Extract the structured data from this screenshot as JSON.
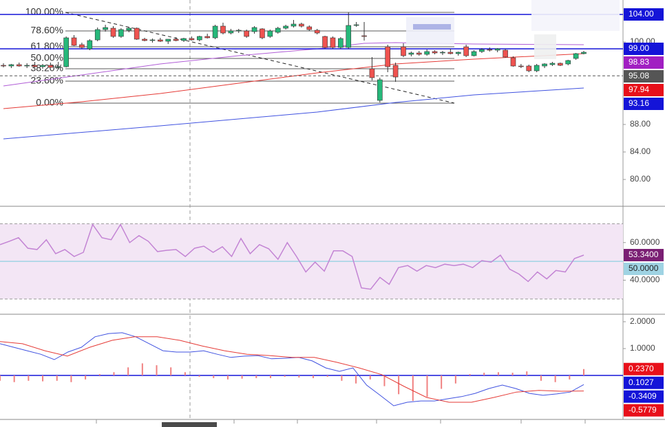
{
  "chart_data": [
    {
      "type": "candlestick",
      "open": [
        96.6,
        96.5,
        96.7,
        96.5,
        96.6,
        96.4,
        96.6,
        96.3,
        96.4,
        100.6,
        99.6,
        99.0,
        100.3,
        101.8,
        102.0,
        100.8,
        101.7,
        102.0,
        100.4,
        100.2,
        100.3,
        100.1,
        100.4,
        100.2,
        100.5,
        100.3,
        100.8,
        100.6,
        102.3,
        101.3,
        101.6,
        101.6,
        101.5,
        101.9,
        100.8,
        101.4,
        102.0,
        102.3,
        102.6,
        102.2,
        101.7,
        100.8,
        100.6,
        99.2,
        99.2,
        102.5,
        100.9,
        96.1,
        91.5,
        99.3,
        96.6,
        99.3,
        98.2,
        98.4,
        98.2,
        98.6,
        98.4,
        98.5,
        98.3,
        99.3,
        98.0,
        98.6,
        98.9,
        98.8,
        98.8,
        97.7,
        96.5,
        96.5,
        95.8,
        96.5,
        96.7,
        96.9,
        96.8,
        97.6,
        98.3
      ],
      "high": [
        96.9,
        96.8,
        97.0,
        96.9,
        97.1,
        96.8,
        97.0,
        97.1,
        100.8,
        101.0,
        99.9,
        100.4,
        102.1,
        102.5,
        102.3,
        102.0,
        102.2,
        102.1,
        100.6,
        100.5,
        100.6,
        100.4,
        100.7,
        100.6,
        100.8,
        100.9,
        101.2,
        102.5,
        102.8,
        101.9,
        101.9,
        101.8,
        102.3,
        102.0,
        101.8,
        102.2,
        102.5,
        103.2,
        102.8,
        102.4,
        101.9,
        100.9,
        100.8,
        100.7,
        104.3,
        102.9,
        102.9,
        97.8,
        94.8,
        99.6,
        97.0,
        99.8,
        98.6,
        98.7,
        98.9,
        98.8,
        98.7,
        99.0,
        98.6,
        99.6,
        98.8,
        99.1,
        99.2,
        99.1,
        99.0,
        97.9,
        96.8,
        96.7,
        96.8,
        96.9,
        97.1,
        97.0,
        97.4,
        98.4,
        98.7
      ],
      "low": [
        96.3,
        96.2,
        96.4,
        96.2,
        96.3,
        96.1,
        96.3,
        96.0,
        96.3,
        99.4,
        99.0,
        98.8,
        100.1,
        101.5,
        100.6,
        100.6,
        101.4,
        100.3,
        100.1,
        99.9,
        100.0,
        99.7,
        100.1,
        100.0,
        100.2,
        100.1,
        100.5,
        100.4,
        101.1,
        101.1,
        101.3,
        100.6,
        101.2,
        100.4,
        100.6,
        101.2,
        101.8,
        102.1,
        102.1,
        101.6,
        101.1,
        99.0,
        99.0,
        99.0,
        99.0,
        102.2,
        100.2,
        94.4,
        91.2,
        95.6,
        94.2,
        97.8,
        97.9,
        98.0,
        98.0,
        98.2,
        98.1,
        98.2,
        98.0,
        97.8,
        97.9,
        98.4,
        98.6,
        98.5,
        97.7,
        96.4,
        96.2,
        95.6,
        95.6,
        96.2,
        96.5,
        96.5,
        96.6,
        97.4,
        98.2
      ],
      "close": [
        96.5,
        96.7,
        96.5,
        96.6,
        96.4,
        96.6,
        96.3,
        96.4,
        100.6,
        99.5,
        99.2,
        100.2,
        101.8,
        102.1,
        100.8,
        101.8,
        102.0,
        100.4,
        100.2,
        100.3,
        100.1,
        100.4,
        100.2,
        100.5,
        100.3,
        100.8,
        100.6,
        102.3,
        101.3,
        101.6,
        101.7,
        100.8,
        102.1,
        100.6,
        101.6,
        102.0,
        102.3,
        102.6,
        102.3,
        101.8,
        101.3,
        99.2,
        99.2,
        100.5,
        102.4,
        102.5,
        100.8,
        94.8,
        94.5,
        96.4,
        94.9,
        98.0,
        98.4,
        98.2,
        98.6,
        98.4,
        98.5,
        98.3,
        98.5,
        98.0,
        98.6,
        98.9,
        98.8,
        99.0,
        97.8,
        96.5,
        96.4,
        95.8,
        96.6,
        96.8,
        96.9,
        96.6,
        97.3,
        98.3,
        98.5
      ],
      "up_color": "#26b87a",
      "down_color": "#ef5350",
      "lines": [
        {
          "color": "#e53935",
          "x": [
            0,
            10,
            20,
            30,
            40,
            50,
            60,
            74
          ],
          "values": [
            90.3,
            91.3,
            92.5,
            94.0,
            95.5,
            96.8,
            97.5,
            98.3
          ]
        },
        {
          "color": "#b05cd6",
          "x": [
            0,
            10,
            20,
            30,
            40,
            46,
            50,
            60,
            74
          ],
          "values": [
            93.6,
            95.2,
            96.8,
            98.0,
            99.0,
            99.8,
            99.9,
            99.7,
            99.6
          ]
        },
        {
          "color": "#3f51e0",
          "x": [
            0,
            20,
            40,
            50,
            60,
            74
          ],
          "values": [
            85.9,
            87.8,
            89.8,
            91.2,
            92.3,
            93.3
          ]
        }
      ],
      "fib_levels": [
        {
          "name": "100.00%",
          "price": 104.3
        },
        {
          "name": "78.60%",
          "price": 101.6
        },
        {
          "name": "61.80%",
          "price": 99.3
        },
        {
          "name": "50.00%",
          "price": 97.6
        },
        {
          "name": "38.20%",
          "price": 96.1
        },
        {
          "name": "23.60%",
          "price": 94.3
        },
        {
          "name": "0.00%",
          "price": 91.1
        }
      ],
      "price_labels": [
        {
          "value": 104,
          "label": "104.00",
          "color": "#1414d8",
          "style": "solid"
        },
        {
          "value": 99,
          "label": "99.00",
          "color": "#1414d8",
          "style": "solid"
        },
        {
          "value": 98.83,
          "label": "98.83",
          "color": "#a11fc2",
          "style": "none"
        },
        {
          "value": 95.08,
          "label": "95.08",
          "color": "#555555",
          "style": "dashed"
        },
        {
          "value": 97.94,
          "label": "97.94",
          "color": "#e8101a",
          "style": "none"
        },
        {
          "value": 93.16,
          "label": "93.16",
          "color": "#1414d8",
          "style": "none"
        }
      ],
      "ylim": [
        76.1,
        106.1
      ],
      "yticks": [
        {
          "value": 80,
          "label": "80.00"
        },
        {
          "value": 84,
          "label": "84.00"
        },
        {
          "value": 88,
          "label": "88.00"
        },
        {
          "value": 100,
          "label": "100.00"
        }
      ]
    },
    {
      "type": "line",
      "color": "#c384d4",
      "values": [
        58.9,
        60.7,
        62.6,
        57.0,
        56.3,
        61.5,
        54.1,
        56.3,
        52.6,
        54.8,
        69.6,
        62.6,
        61.5,
        69.6,
        60.0,
        63.7,
        60.7,
        55.2,
        55.9,
        56.3,
        52.6,
        57.0,
        58.1,
        54.8,
        57.8,
        52.6,
        62.2,
        54.1,
        58.9,
        56.7,
        51.1,
        60.0,
        52.6,
        44.4,
        49.6,
        44.8,
        55.6,
        55.6,
        52.6,
        35.9,
        35.2,
        41.5,
        37.8,
        46.7,
        47.8,
        44.8,
        47.8,
        46.7,
        48.5,
        47.8,
        48.5,
        46.7,
        50.4,
        49.6,
        53.3,
        45.9,
        43.3,
        39.3,
        44.4,
        40.7,
        45.2,
        44.4,
        51.5,
        53.34
      ],
      "band": [
        30,
        70
      ],
      "ylim": [
        21.9,
        79.3
      ],
      "yticks": [
        {
          "value": 60,
          "label": "60.0000"
        },
        {
          "value": 40,
          "label": "40.0000"
        }
      ],
      "price_labels": [
        {
          "value": 53.34,
          "label": "53.3400",
          "color": "#7a1f73",
          "style": "none"
        },
        {
          "value": 50,
          "label": "50.0000",
          "color": "#9fd3e3",
          "style": "solid"
        }
      ]
    },
    {
      "type": "macd",
      "series": [
        {
          "color": "#3f51e0",
          "values": [
            1.18,
            1.05,
            0.92,
            0.79,
            0.59,
            0.87,
            1.05,
            1.44,
            1.56,
            1.59,
            1.44,
            1.18,
            0.92,
            0.87,
            0.87,
            0.92,
            0.79,
            0.67,
            0.72,
            0.74,
            0.62,
            0.64,
            0.67,
            0.54,
            0.28,
            0.15,
            0.28,
            -0.36,
            -0.74,
            -1.13,
            -1.0,
            -0.95,
            -0.95,
            -0.87,
            -0.79,
            -0.67,
            -0.49,
            -0.36,
            -0.49,
            -0.67,
            -0.74,
            -0.69,
            -0.62,
            -0.34
          ]
        },
        {
          "color": "#e53935",
          "values": [
            1.26,
            1.18,
            0.92,
            0.72,
            1.05,
            1.31,
            1.44,
            1.44,
            1.31,
            1.1,
            0.92,
            0.79,
            0.74,
            0.67,
            0.67,
            0.49,
            0.28,
            0.03,
            -0.41,
            -0.82,
            -1.0,
            -1.0,
            -0.82,
            -0.62,
            -0.56,
            -0.59,
            -0.58
          ]
        }
      ],
      "histogram": {
        "color": "#f08080",
        "values": [
          -0.2,
          -0.25,
          -0.2,
          -0.22,
          -0.2,
          -0.25,
          -0.15,
          0.05,
          0.12,
          0.3,
          0.45,
          0.38,
          0.3,
          0.12,
          -0.05,
          -0.1,
          -0.15,
          -0.12,
          -0.1,
          -0.1,
          -0.05,
          -0.08,
          -0.1,
          -0.05,
          -0.2,
          -0.3,
          -0.15,
          -0.4,
          -0.7,
          -0.95,
          -0.8,
          -0.5,
          -0.3,
          0.05,
          0.1,
          0.12,
          0.1,
          0.15,
          -0.2,
          -0.25,
          -0.15,
          0.237
        ]
      },
      "ylim": [
        -1.64,
        2.28
      ],
      "yticks": [
        {
          "value": 2,
          "label": "2.0000"
        },
        {
          "value": 1,
          "label": "1.0000"
        }
      ],
      "price_labels": [
        {
          "value": 0.237,
          "label": "0.2370",
          "color": "#e8101a",
          "style": "none"
        },
        {
          "value": 0.1027,
          "label": "0.1027",
          "color": "#1414d8",
          "style": "none"
        },
        {
          "value": -0.3409,
          "label": "-0.3409",
          "color": "#1414d8",
          "style": "none"
        },
        {
          "value": -0.5779,
          "label": "-0.5779",
          "color": "#e8101a",
          "style": "none"
        }
      ]
    }
  ]
}
